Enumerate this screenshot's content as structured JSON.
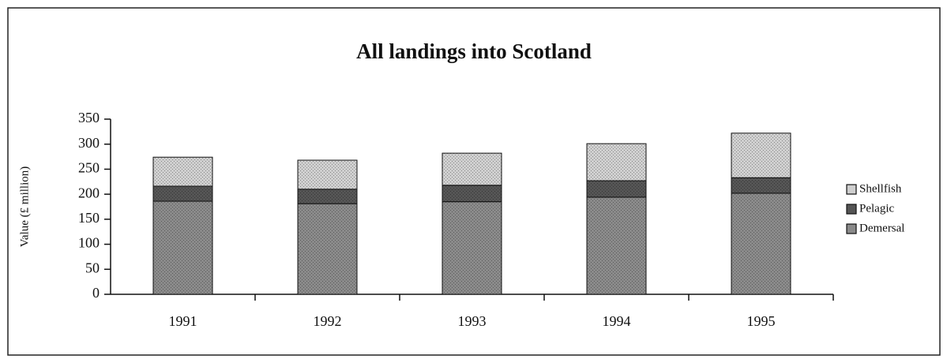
{
  "chart_data": {
    "type": "stacked_bar",
    "title": "All landings into Scotland",
    "y_label": "Value (£ million)",
    "categories": [
      "1991",
      "1992",
      "1993",
      "1994",
      "1995"
    ],
    "series": [
      {
        "name": "Demersal",
        "color": "#8a8a8a",
        "values": [
          186,
          181,
          185,
          194,
          202
        ]
      },
      {
        "name": "Pelagic",
        "color": "#555555",
        "values": [
          30,
          29,
          33,
          33,
          31
        ]
      },
      {
        "name": "Shellfish",
        "color": "#cfcfcf",
        "values": [
          58,
          58,
          64,
          74,
          89
        ]
      }
    ],
    "ylim": [
      0,
      350
    ],
    "yticks": [
      0,
      50,
      100,
      150,
      200,
      250,
      300,
      350
    ],
    "legend": "right"
  }
}
